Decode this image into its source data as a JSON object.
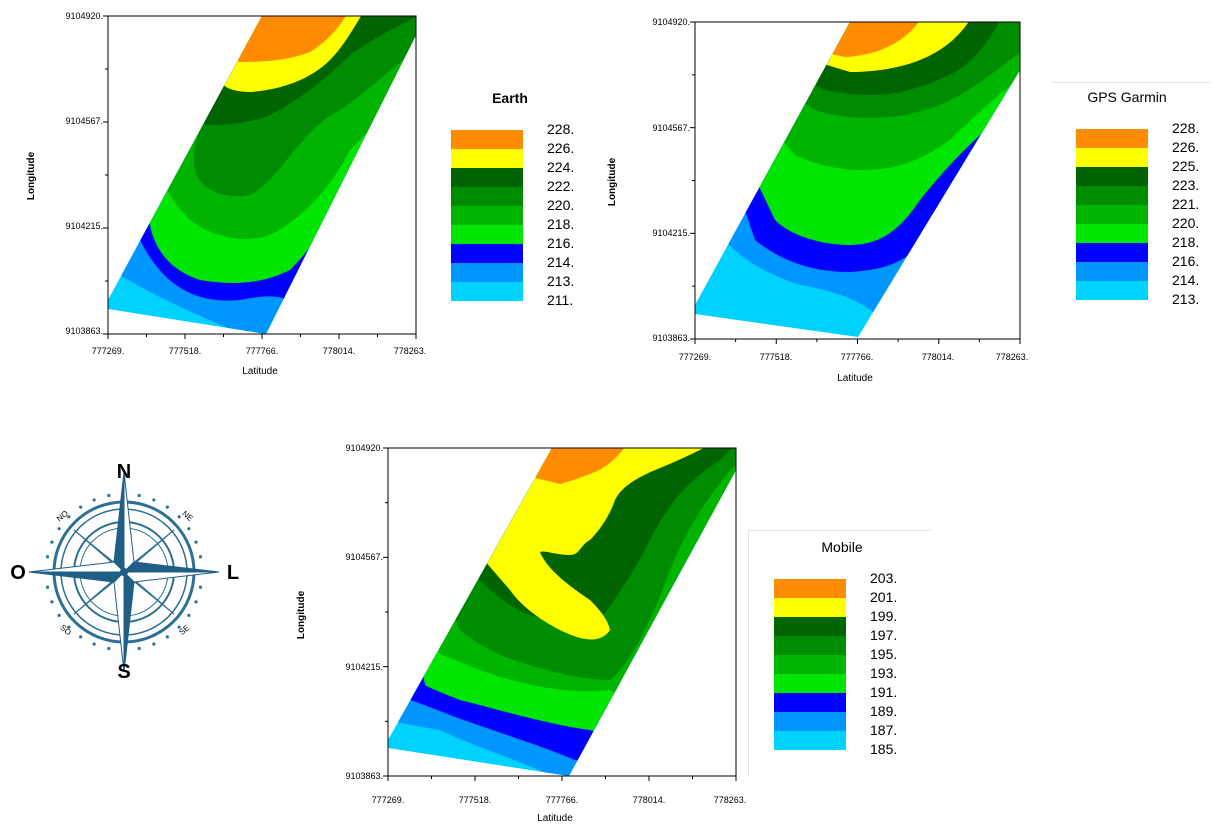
{
  "chart_data": [
    {
      "type": "heatmap",
      "title": "Earth",
      "xlabel": "Latitude",
      "ylabel": "Longitude",
      "xticks": [
        "777269.",
        "777518.",
        "777766.",
        "778014.",
        "778263."
      ],
      "yticks": [
        "9104920.",
        "9104567.",
        "9104215.",
        "9103863."
      ],
      "xlim": [
        777269,
        778263
      ],
      "ylim": [
        9103863,
        9104920
      ],
      "legend": [
        {
          "label": "228.",
          "color": "#FF8C00"
        },
        {
          "label": "226.",
          "color": "#FFFF00"
        },
        {
          "label": "224.",
          "color": "#006400"
        },
        {
          "label": "222.",
          "color": "#008C00"
        },
        {
          "label": "220.",
          "color": "#00B400"
        },
        {
          "label": "218.",
          "color": "#00E600"
        },
        {
          "label": "216.",
          "color": "#0000FF"
        },
        {
          "label": "214.",
          "color": "#0096FF"
        },
        {
          "label": "213.",
          "color": "#00D2FF"
        },
        {
          "label": "211.",
          "color": "#00D2FF"
        }
      ]
    },
    {
      "type": "heatmap",
      "title": "GPS Garmin",
      "xlabel": "Latitude",
      "ylabel": "Longitude",
      "xticks": [
        "777269.",
        "777518.",
        "777766.",
        "778014.",
        "778263."
      ],
      "yticks": [
        "9104920.",
        "9104567.",
        "9104215.",
        "9103863."
      ],
      "xlim": [
        777269,
        778263
      ],
      "ylim": [
        9103863,
        9104920
      ],
      "legend": [
        {
          "label": "228.",
          "color": "#FF8C00"
        },
        {
          "label": "226.",
          "color": "#FFFF00"
        },
        {
          "label": "225.",
          "color": "#006400"
        },
        {
          "label": "223.",
          "color": "#008C00"
        },
        {
          "label": "221.",
          "color": "#00B400"
        },
        {
          "label": "220.",
          "color": "#00E600"
        },
        {
          "label": "218.",
          "color": "#0000FF"
        },
        {
          "label": "216.",
          "color": "#0096FF"
        },
        {
          "label": "214.",
          "color": "#00D2FF"
        },
        {
          "label": "213.",
          "color": "#00D2FF"
        }
      ]
    },
    {
      "type": "heatmap",
      "title": "Mobile",
      "xlabel": "Latitude",
      "ylabel": "Longitude",
      "xticks": [
        "777269.",
        "777518.",
        "777766.",
        "778014.",
        "778263."
      ],
      "yticks": [
        "9104920.",
        "9104567.",
        "9104215.",
        "9103863."
      ],
      "xlim": [
        777269,
        778263
      ],
      "ylim": [
        9103863,
        9104920
      ],
      "legend": [
        {
          "label": "203.",
          "color": "#FF8C00"
        },
        {
          "label": "201.",
          "color": "#FFFF00"
        },
        {
          "label": "199.",
          "color": "#006400"
        },
        {
          "label": "197.",
          "color": "#008C00"
        },
        {
          "label": "195.",
          "color": "#00B400"
        },
        {
          "label": "193.",
          "color": "#00E600"
        },
        {
          "label": "191.",
          "color": "#0000FF"
        },
        {
          "label": "189.",
          "color": "#0096FF"
        },
        {
          "label": "187.",
          "color": "#00D2FF"
        },
        {
          "label": "185.",
          "color": "#00D2FF"
        }
      ]
    }
  ],
  "compass": {
    "north": "N",
    "south": "S",
    "east": "L",
    "west": "O",
    "northeast": "NE",
    "northwest": "NO",
    "southeast": "SE",
    "southwest": "SO",
    "color": "#2E6F95"
  }
}
